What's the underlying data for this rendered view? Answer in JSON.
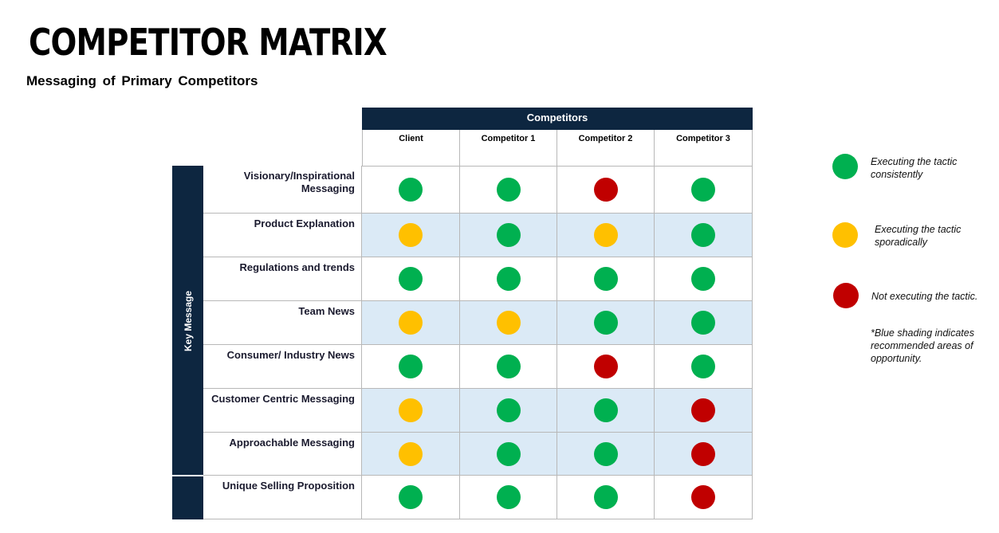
{
  "title": "COMPETITOR MATRIX",
  "subtitle": "Messaging  of Primary  Competitors",
  "header_group": "Competitors",
  "side_label": "Key Message",
  "colors": {
    "green": "#00b050",
    "yellow": "#ffc000",
    "red": "#c00000",
    "navy": "#0d2640",
    "shade": "#dbeaf6"
  },
  "columns": [
    "Client",
    "Competitor 1",
    "Competitor 2",
    "Competitor 3"
  ],
  "rows": [
    {
      "label": "Visionary/Inspirational Messaging",
      "shaded": false,
      "ratings": [
        "green",
        "green",
        "red",
        "green"
      ]
    },
    {
      "label": "Product Explanation",
      "shaded": true,
      "ratings": [
        "yellow",
        "green",
        "yellow",
        "green"
      ]
    },
    {
      "label": "Regulations and trends",
      "shaded": false,
      "ratings": [
        "green",
        "green",
        "green",
        "green"
      ]
    },
    {
      "label": "Team News",
      "shaded": true,
      "ratings": [
        "yellow",
        "yellow",
        "green",
        "green"
      ]
    },
    {
      "label": "Consumer/ Industry News",
      "shaded": false,
      "ratings": [
        "green",
        "green",
        "red",
        "green"
      ]
    },
    {
      "label": "Customer Centric Messaging",
      "shaded": true,
      "ratings": [
        "yellow",
        "green",
        "green",
        "red"
      ]
    },
    {
      "label": "Approachable Messaging",
      "shaded": true,
      "ratings": [
        "yellow",
        "green",
        "green",
        "red"
      ]
    },
    {
      "label": "Unique Selling Proposition",
      "shaded": false,
      "ratings": [
        "green",
        "green",
        "green",
        "red"
      ]
    }
  ],
  "legend": [
    {
      "color": "green",
      "text": "Executing the tactic consistently"
    },
    {
      "color": "yellow",
      "text": "Executing the tactic sporadically"
    },
    {
      "color": "red",
      "text": "Not executing the tactic."
    }
  ],
  "note": "*Blue shading indicates recommended areas of opportunity."
}
